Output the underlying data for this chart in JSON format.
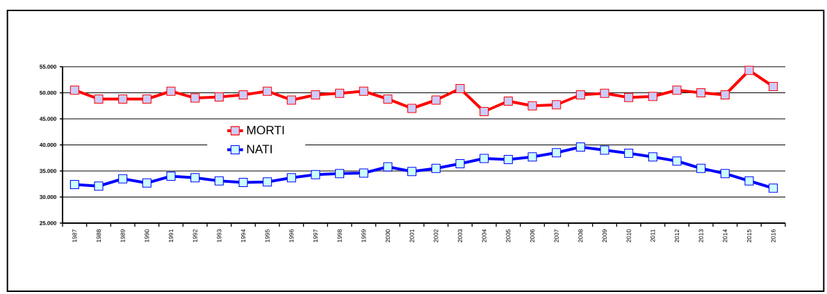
{
  "chart_data": {
    "type": "line",
    "categories": [
      "1987",
      "1988",
      "1989",
      "1990",
      "1991",
      "1992",
      "1993",
      "1994",
      "1995",
      "1996",
      "1997",
      "1998",
      "1999",
      "2000",
      "2001",
      "2002",
      "2003",
      "2004",
      "2005",
      "2006",
      "2007",
      "2008",
      "2009",
      "2010",
      "2011",
      "2012",
      "2013",
      "2014",
      "2015",
      "2016"
    ],
    "series": [
      {
        "name": "MORTI",
        "color": "#ff0000",
        "values": [
          50500,
          48800,
          48800,
          48800,
          50300,
          49000,
          49200,
          49600,
          50300,
          48600,
          49600,
          49900,
          50300,
          48800,
          47000,
          48600,
          50800,
          46400,
          48400,
          47500,
          47700,
          49600,
          49900,
          49100,
          49300,
          50500,
          50000,
          49600,
          54300,
          51200
        ]
      },
      {
        "name": "NATI",
        "color": "#0000ff",
        "values": [
          32400,
          32100,
          33500,
          32700,
          34000,
          33700,
          33100,
          32800,
          32900,
          33700,
          34300,
          34500,
          34600,
          35800,
          34900,
          35500,
          36400,
          37400,
          37200,
          37700,
          38500,
          39600,
          39000,
          38400,
          37700,
          36900,
          35500,
          34500,
          33100,
          31700
        ]
      }
    ],
    "ylim": [
      25000,
      55000
    ],
    "yticks": [
      {
        "value": 25000,
        "label": "25.000"
      },
      {
        "value": 30000,
        "label": "30.000"
      },
      {
        "value": 35000,
        "label": "35.000"
      },
      {
        "value": 40000,
        "label": "40.000"
      },
      {
        "value": 45000,
        "label": "45.000"
      },
      {
        "value": 50000,
        "label": "50.000"
      },
      {
        "value": 55000,
        "label": "55.000"
      }
    ],
    "grid": "y",
    "legend": "left",
    "marker": "square",
    "line_style": "solid"
  }
}
